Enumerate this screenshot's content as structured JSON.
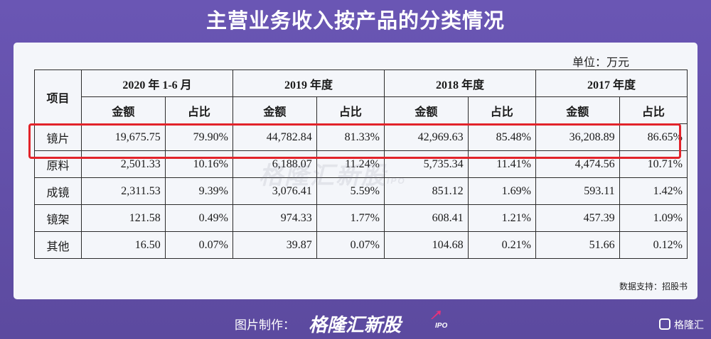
{
  "title": "主营业务收入按产品的分类情况",
  "unit": "单位：万元",
  "table": {
    "item_header": "项目",
    "periods": [
      "2020 年 1-6 月",
      "2019 年度",
      "2018 年度",
      "2017 年度"
    ],
    "sub_headers": [
      "金额",
      "占比"
    ],
    "rows": [
      {
        "name": "镜片",
        "cells": [
          "19,675.75",
          "79.90%",
          "44,782.84",
          "81.33%",
          "42,969.63",
          "85.48%",
          "36,208.89",
          "86.65%"
        ]
      },
      {
        "name": "原料",
        "cells": [
          "2,501.33",
          "10.16%",
          "6,188.07",
          "11.24%",
          "5,735.34",
          "11.41%",
          "4,474.56",
          "10.71%"
        ]
      },
      {
        "name": "成镜",
        "cells": [
          "2,311.53",
          "9.39%",
          "3,076.41",
          "5.59%",
          "851.12",
          "1.69%",
          "593.11",
          "1.42%"
        ]
      },
      {
        "name": "镜架",
        "cells": [
          "121.58",
          "0.49%",
          "974.33",
          "1.77%",
          "608.41",
          "1.21%",
          "457.39",
          "1.09%"
        ]
      },
      {
        "name": "其他",
        "cells": [
          "16.50",
          "0.07%",
          "39.87",
          "0.07%",
          "104.68",
          "0.21%",
          "51.66",
          "0.12%"
        ]
      }
    ]
  },
  "watermark": {
    "text": "格隆汇新股",
    "ipo": "IPO"
  },
  "source": "数据支持：招股书",
  "footer": {
    "credit": "图片制作：",
    "brand": "格隆汇新股",
    "brand_ipo": "IPO",
    "logo_text": "格隆汇"
  },
  "colors": {
    "background": "#6a56b4",
    "highlight": "#e2232a",
    "card": "#f4f6fa"
  }
}
